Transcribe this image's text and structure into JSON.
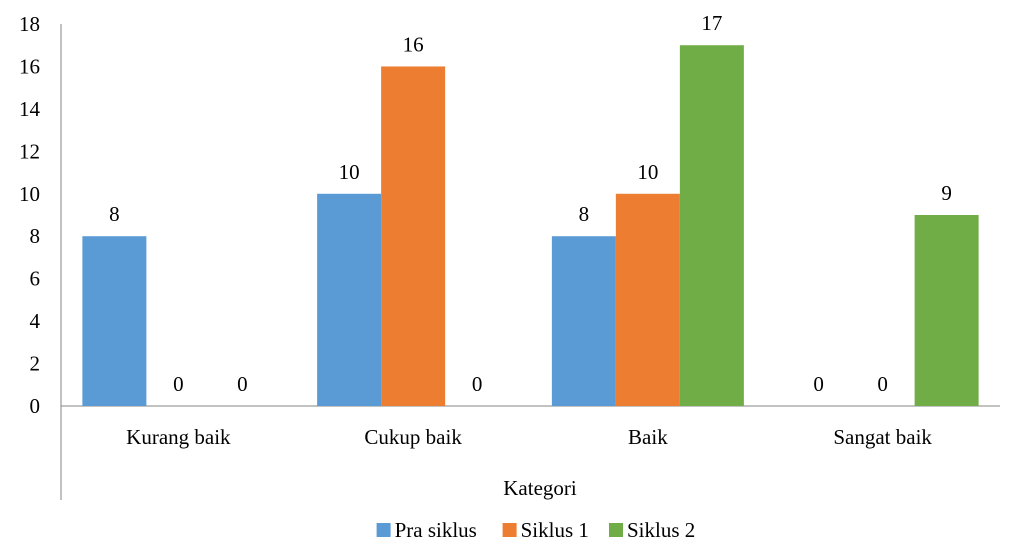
{
  "chart_data": {
    "type": "bar",
    "title": "",
    "xlabel": "Kategori",
    "ylabel": "",
    "categories": [
      "Kurang baik",
      "Cukup baik",
      "Baik",
      "Sangat baik"
    ],
    "series": [
      {
        "name": "Pra siklus",
        "color": "#5B9BD5",
        "values": [
          8,
          10,
          8,
          0
        ]
      },
      {
        "name": "Siklus 1",
        "color": "#ED7D31",
        "values": [
          0,
          16,
          10,
          0
        ]
      },
      {
        "name": "Siklus 2",
        "color": "#70AD47",
        "values": [
          0,
          0,
          17,
          9
        ]
      }
    ],
    "ylim": [
      0,
      18
    ],
    "yticks": [
      "0",
      "2",
      "4",
      "6",
      "8",
      "10",
      "12",
      "14",
      "16",
      "18"
    ],
    "grid": false,
    "data_labels": true,
    "legend_position": "bottom"
  }
}
